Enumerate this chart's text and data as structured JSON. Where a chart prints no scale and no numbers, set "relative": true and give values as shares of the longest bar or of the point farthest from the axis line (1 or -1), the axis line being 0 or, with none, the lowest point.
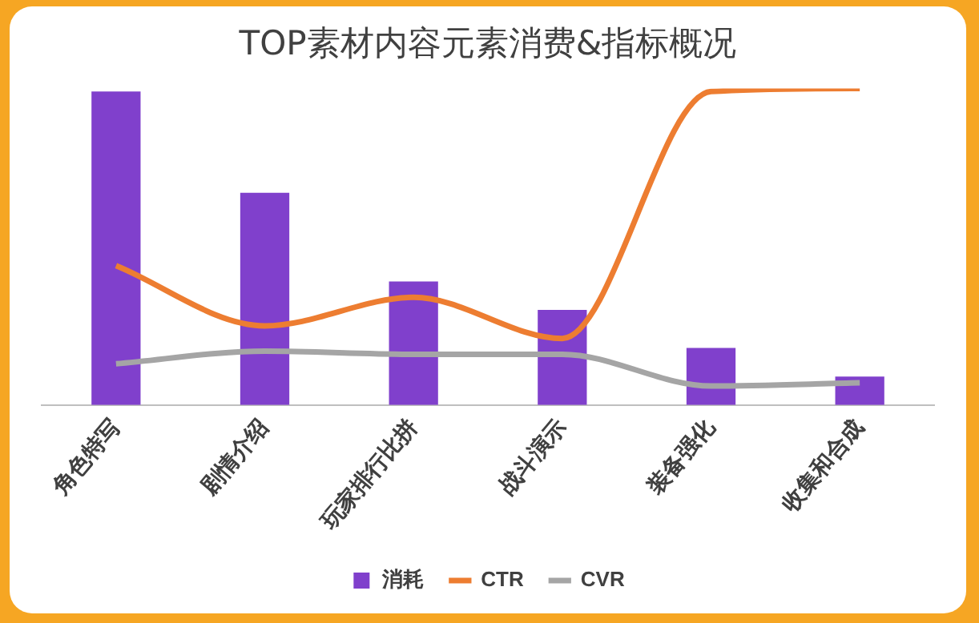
{
  "chart_data": {
    "type": "bar",
    "title": "TOP素材内容元素消费&指标概况",
    "relative": true,
    "categories": [
      "角色特写",
      "剧情介绍",
      "玩家排行比拼",
      "战斗演示",
      "装备强化",
      "收集和合成"
    ],
    "series": [
      {
        "name": "消耗",
        "color": "#8040cc",
        "values": [
          0.99,
          0.67,
          0.39,
          0.3,
          0.18,
          0.09
        ]
      },
      {
        "name": "CTR",
        "type": "line",
        "color": "#ed7d31",
        "values": [
          0.44,
          0.25,
          0.34,
          0.21,
          0.99,
          1.0
        ]
      },
      {
        "name": "CVR",
        "type": "line",
        "color": "#a5a5a5",
        "values": [
          0.13,
          0.17,
          0.16,
          0.16,
          0.06,
          0.07
        ]
      }
    ],
    "legend": "bottom",
    "grid": false,
    "marker": "none"
  }
}
